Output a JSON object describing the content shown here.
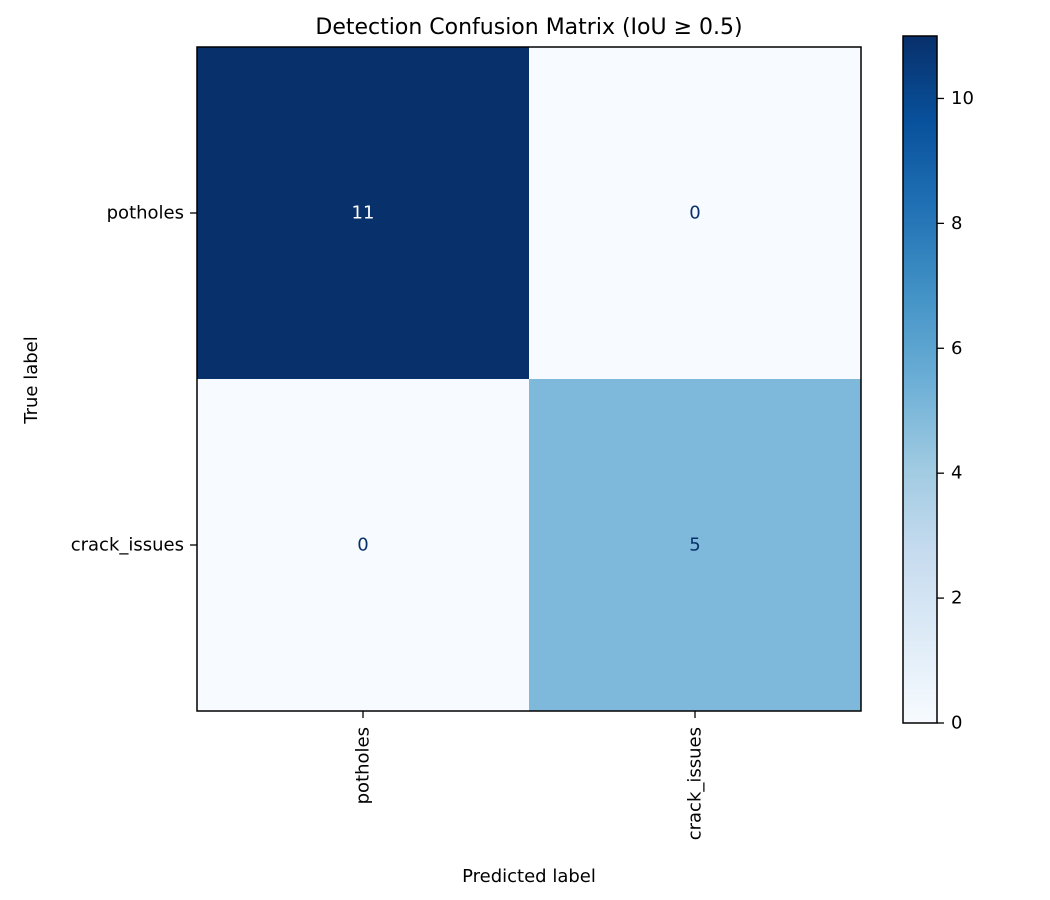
{
  "chart_data": {
    "type": "heatmap",
    "title": "Detection Confusion Matrix (IoU ≥ 0.5)",
    "xlabel": "Predicted label",
    "ylabel": "True label",
    "x_categories": [
      "potholes",
      "crack_issues"
    ],
    "y_categories": [
      "potholes",
      "crack_issues"
    ],
    "matrix": [
      [
        11,
        0
      ],
      [
        0,
        5
      ]
    ],
    "colormap": "Blues",
    "colorbar": {
      "range": [
        0,
        11
      ],
      "ticks": [
        0,
        2,
        4,
        6,
        8,
        10
      ]
    },
    "colors": {
      "low": "#f7fbff",
      "high": "#08306b",
      "text_on_dark": "#ffffff",
      "text_on_light": "#08306b"
    }
  }
}
